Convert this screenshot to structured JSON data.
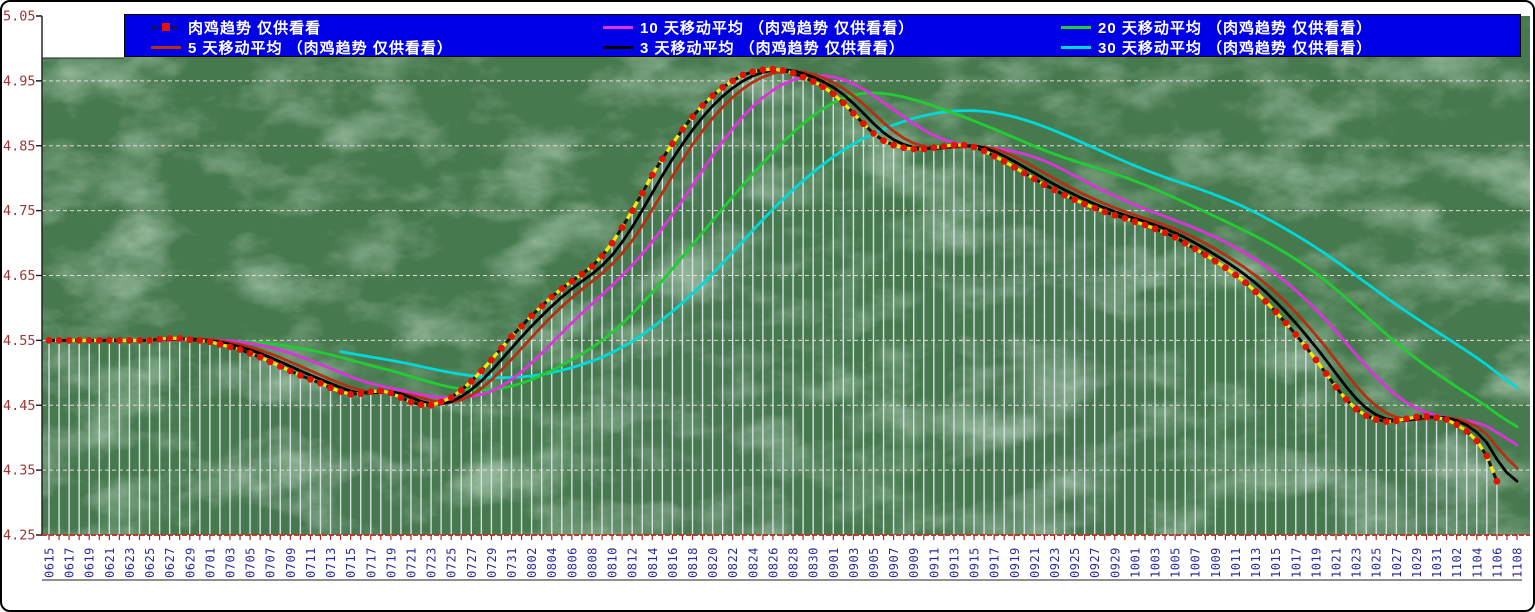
{
  "colors": {
    "plot_bg": "#47794e",
    "plot_vein": "#a8d0ad",
    "grid": "#eedcdc",
    "drop_line": "#d6dfe5",
    "x_axis_red": "#c23a2e",
    "x_tick_red": "#a82c22",
    "axis_black": "#1a1a1a",
    "y_label": "#a03535",
    "x_label": "#2b2b9b",
    "legend_bg": "#0000e6",
    "legend_text": "#ffffff",
    "main_line_yellow": "#ffe800",
    "main_line_dash": "#151515",
    "main_marker_red": "#e01400"
  },
  "chart_data": {
    "type": "line",
    "title": "肉鸡趋势 仅供看看",
    "ylim": [
      4.25,
      5.05
    ],
    "y_ticks": [
      4.25,
      4.35,
      4.45,
      4.55,
      4.65,
      4.75,
      4.85,
      4.95,
      5.05
    ],
    "x_label_every": 2,
    "grid": true,
    "legend_position": "top",
    "dates": [
      "0615",
      "0616",
      "0617",
      "0618",
      "0619",
      "0620",
      "0621",
      "0622",
      "0623",
      "0624",
      "0625",
      "0626",
      "0627",
      "0628",
      "0629",
      "0630",
      "0701",
      "0702",
      "0703",
      "0704",
      "0705",
      "0706",
      "0707",
      "0708",
      "0709",
      "0710",
      "0711",
      "0712",
      "0713",
      "0714",
      "0715",
      "0716",
      "0717",
      "0718",
      "0719",
      "0720",
      "0721",
      "0722",
      "0723",
      "0724",
      "0725",
      "0726",
      "0727",
      "0728",
      "0729",
      "0730",
      "0731",
      "0801",
      "0802",
      "0803",
      "0804",
      "0805",
      "0806",
      "0807",
      "0808",
      "0809",
      "0810",
      "0811",
      "0812",
      "0813",
      "0814",
      "0815",
      "0816",
      "0817",
      "0818",
      "0819",
      "0820",
      "0821",
      "0822",
      "0823",
      "0824",
      "0825",
      "0826",
      "0827",
      "0828",
      "0829",
      "0830",
      "0831",
      "0901",
      "0902",
      "0903",
      "0904",
      "0905",
      "0906",
      "0907",
      "0908",
      "0909",
      "0910",
      "0911",
      "0912",
      "0913",
      "0914",
      "0915",
      "0916",
      "0917",
      "0918",
      "0919",
      "0920",
      "0921",
      "0922",
      "0923",
      "0924",
      "0925",
      "0926",
      "0927",
      "0928",
      "0929",
      "0930",
      "1001",
      "1002",
      "1003",
      "1004",
      "1005",
      "1006",
      "1007",
      "1008",
      "1009",
      "1010",
      "1011",
      "1012",
      "1013",
      "1014",
      "1015",
      "1016",
      "1017",
      "1018",
      "1019",
      "1020",
      "1021",
      "1022",
      "1023",
      "1024",
      "1025",
      "1026",
      "1027",
      "1028",
      "1029",
      "1030",
      "1031",
      "1101",
      "1102",
      "1103",
      "1104",
      "1105",
      "1106",
      "1107",
      "1108"
    ],
    "main_series": {
      "label": "肉鸡趋势 仅供看看",
      "values": [
        4.55,
        4.55,
        4.55,
        4.55,
        4.55,
        4.55,
        4.55,
        4.55,
        4.55,
        4.55,
        4.55,
        4.552,
        4.553,
        4.553,
        4.551,
        4.55,
        4.548,
        4.544,
        4.54,
        4.536,
        4.53,
        4.524,
        4.517,
        4.51,
        4.503,
        4.496,
        4.49,
        4.484,
        4.477,
        4.471,
        4.467,
        4.468,
        4.471,
        4.472,
        4.469,
        4.462,
        4.455,
        4.451,
        4.45,
        4.455,
        4.462,
        4.473,
        4.487,
        4.503,
        4.52,
        4.538,
        4.556,
        4.572,
        4.588,
        4.603,
        4.617,
        4.63,
        4.641,
        4.652,
        4.664,
        4.68,
        4.7,
        4.724,
        4.75,
        4.777,
        4.805,
        4.83,
        4.853,
        4.875,
        4.895,
        4.912,
        4.927,
        4.94,
        4.95,
        4.959,
        4.964,
        4.967,
        4.968,
        4.966,
        4.962,
        4.956,
        4.949,
        4.941,
        4.93,
        4.916,
        4.9,
        4.884,
        4.869,
        4.858,
        4.851,
        4.847,
        4.845,
        4.845,
        4.847,
        4.849,
        4.851,
        4.851,
        4.848,
        4.842,
        4.834,
        4.826,
        4.817,
        4.808,
        4.799,
        4.79,
        4.782,
        4.774,
        4.767,
        4.76,
        4.754,
        4.748,
        4.743,
        4.738,
        4.733,
        4.728,
        4.722,
        4.716,
        4.709,
        4.7,
        4.691,
        4.682,
        4.672,
        4.662,
        4.651,
        4.639,
        4.625,
        4.61,
        4.594,
        4.577,
        4.559,
        4.54,
        4.52,
        4.499,
        4.478,
        4.459,
        4.444,
        4.434,
        4.428,
        4.425,
        4.426,
        4.429,
        4.432,
        4.433,
        4.431,
        4.428,
        4.42,
        4.41,
        4.395,
        4.372,
        4.333,
        null,
        null
      ]
    },
    "moving_averages": [
      {
        "window": 30,
        "label": "30 天移动平均 （肉鸡趋势 仅供看看）",
        "color": "#00d9d9"
      },
      {
        "window": 20,
        "label": "20 天移动平均 （肉鸡趋势 仅供看看）",
        "color": "#22cc33"
      },
      {
        "window": 10,
        "label": "10 天移动平均 （肉鸡趋势 仅供看看）",
        "color": "#dd33dd"
      },
      {
        "window": 5,
        "label": "5 天移动平均 （肉鸡趋势 仅供看看）",
        "color": "#b33012"
      },
      {
        "window": 3,
        "label": "3 天移动平均 （肉鸡趋势 仅供看看）",
        "color": "#000000"
      }
    ],
    "legend": {
      "items": [
        {
          "label": "肉鸡趋势 仅供看看",
          "marker_style": "dash-red-square",
          "marker_color": "#12124a"
        },
        {
          "label": "5 天移动平均 （肉鸡趋势 仅供看看）",
          "marker_style": "line",
          "marker_color": "#b33012"
        },
        {
          "label": "10 天移动平均 （肉鸡趋势 仅供看看）",
          "marker_style": "line",
          "marker_color": "#dd33dd"
        },
        {
          "label": "3 天移动平均 （肉鸡趋势 仅供看看）",
          "marker_style": "line",
          "marker_color": "#000000"
        },
        {
          "label": "20 天移动平均 （肉鸡趋势 仅供看看）",
          "marker_style": "line",
          "marker_color": "#22cc33"
        },
        {
          "label": "30 天移动平均 （肉鸡趋势 仅供看看）",
          "marker_style": "line",
          "marker_color": "#00d9d9"
        }
      ]
    }
  }
}
